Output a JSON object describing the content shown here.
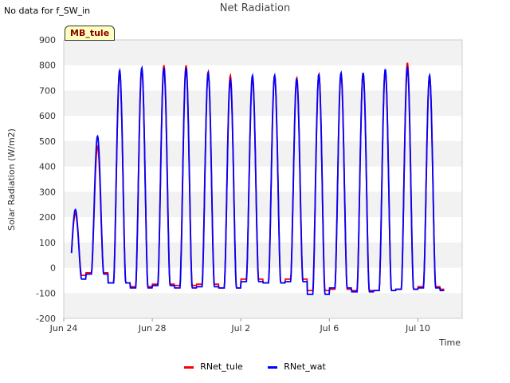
{
  "header": {
    "nodata_note": "No data for f_SW_in",
    "site_badge": "MB_tule"
  },
  "colors": {
    "RNet_tule": "#ff0000",
    "RNet_wat": "#0000ff",
    "band": "#f2f2f2",
    "grid": "#ffffff"
  },
  "chart_data": {
    "type": "line",
    "title": "Net Radiation",
    "xlabel": "Time",
    "ylabel": "Solar Radiation (W/m2)",
    "ylim": [
      -200,
      900
    ],
    "yticks": [
      -200,
      -100,
      0,
      100,
      200,
      300,
      400,
      500,
      600,
      700,
      800,
      900
    ],
    "xlim_days": [
      0,
      18
    ],
    "xticks": [
      {
        "label": "Jun 24",
        "day": 0
      },
      {
        "label": "Jun 28",
        "day": 4
      },
      {
        "label": "Jul 2",
        "day": 8
      },
      {
        "label": "Jul 6",
        "day": 12
      },
      {
        "label": "Jul 10",
        "day": 16
      }
    ],
    "start_day": 0.35,
    "end_day": 17.2,
    "series": [
      {
        "name": "RNet_tule",
        "daily_peak": [
          215,
          480,
          775,
          785,
          800,
          800,
          775,
          760,
          750,
          760,
          750,
          765,
          765,
          770,
          780,
          810,
          760
        ],
        "daily_night": [
          -30,
          -20,
          -60,
          -75,
          -65,
          -70,
          -65,
          -80,
          -45,
          -60,
          -45,
          -90,
          -85,
          -90,
          -90,
          -85,
          -75,
          -85
        ]
      },
      {
        "name": "RNet_wat",
        "daily_peak": [
          230,
          520,
          780,
          790,
          790,
          790,
          770,
          745,
          760,
          760,
          745,
          765,
          770,
          770,
          785,
          790,
          760
        ],
        "daily_night": [
          -45,
          -25,
          -60,
          -80,
          -70,
          -80,
          -75,
          -80,
          -55,
          -60,
          -55,
          -105,
          -80,
          -95,
          -90,
          -85,
          -80,
          -90
        ]
      }
    ],
    "legend": [
      "RNet_tule",
      "RNet_wat"
    ]
  }
}
